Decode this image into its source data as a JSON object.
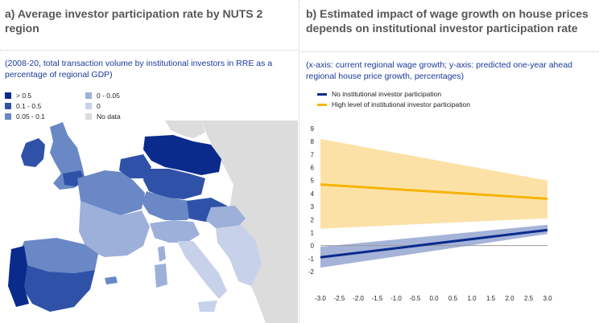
{
  "panel_a": {
    "title": "a) Average investor participation rate by NUTS 2 region",
    "subtitle": "(2008-20, total transaction volume by institutional investors in RRE as a percentage of regional GDP)",
    "legend": [
      {
        "label": "> 0.5",
        "color": "#0a2a8c"
      },
      {
        "label": "0.1 - 0.5",
        "color": "#2f52a8"
      },
      {
        "label": "0.05 - 0.1",
        "color": "#6a88c6"
      },
      {
        "label": "0 - 0.05",
        "color": "#9db0da"
      },
      {
        "label": "0",
        "color": "#c7d2ea"
      },
      {
        "label": "No data",
        "color": "#dcdcdc"
      }
    ]
  },
  "panel_b": {
    "title": "b) Estimated impact of wage growth on house prices depends on institutional investor participation rate",
    "subtitle": "(x-axis: current regional wage growth; y-axis: predicted one-year ahead regional house price growth, percentages)"
  },
  "chart_data": {
    "type": "line",
    "x_range": [
      -3.0,
      3.0
    ],
    "ylim": [
      -2,
      9
    ],
    "x_ticks": [
      "-3.0",
      "-2.5",
      "-2.0",
      "-1.5",
      "-1.0",
      "-0.5",
      "0.0",
      "0.5",
      "1.0",
      "1.5",
      "2.0",
      "2.5",
      "3.0"
    ],
    "y_ticks": [
      "-2",
      "-1",
      "0",
      "1",
      "2",
      "3",
      "4",
      "5",
      "6",
      "7",
      "8",
      "9"
    ],
    "legend_placement": "top-left",
    "series": [
      {
        "name": "No institutional investor participation",
        "color": "#0a2a8c",
        "band_color": "#5b74b8",
        "x": [
          -3.0,
          3.0
        ],
        "y": [
          -0.9,
          1.2
        ],
        "lower": [
          -1.7,
          0.9
        ],
        "upper": [
          -0.1,
          1.6
        ]
      },
      {
        "name": "High level of institutional investor participation",
        "color": "#f5b400",
        "band_color": "#fbd78a",
        "x": [
          -3.0,
          3.0
        ],
        "y": [
          4.7,
          3.6
        ],
        "lower": [
          1.3,
          2.1
        ],
        "upper": [
          8.2,
          5.0
        ]
      }
    ]
  }
}
